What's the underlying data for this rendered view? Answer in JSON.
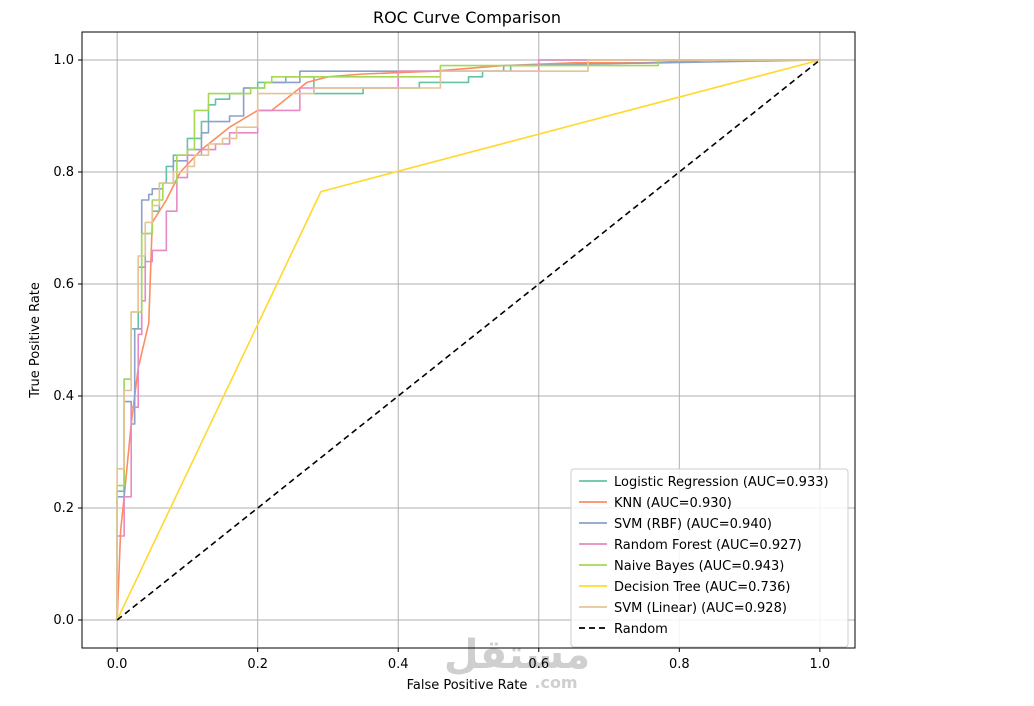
{
  "chart_data": {
    "type": "line",
    "title": "ROC Curve Comparison",
    "xlabel": "False Positive Rate",
    "ylabel": "True Positive Rate",
    "xlim": [
      -0.05,
      1.05
    ],
    "ylim": [
      -0.05,
      1.05
    ],
    "xticks": [
      "0.0",
      "0.2",
      "0.4",
      "0.6",
      "0.8",
      "1.0"
    ],
    "yticks": [
      "0.0",
      "0.2",
      "0.4",
      "0.6",
      "0.8",
      "1.0"
    ],
    "grid": true,
    "legend_position": "lower-right",
    "series": [
      {
        "name": "Logistic Regression (AUC=0.933)",
        "color": "#66c2a5",
        "x": [
          0,
          0,
          0.01,
          0.01,
          0.02,
          0.02,
          0.03,
          0.03,
          0.04,
          0.04,
          0.05,
          0.05,
          0.06,
          0.06,
          0.07,
          0.07,
          0.08,
          0.08,
          0.1,
          0.1,
          0.12,
          0.12,
          0.13,
          0.13,
          0.14,
          0.14,
          0.16,
          0.16,
          0.18,
          0.18,
          0.2,
          0.2,
          0.24,
          0.24,
          0.28,
          0.28,
          0.35,
          0.35,
          0.43,
          0.43,
          0.5,
          0.5,
          0.52,
          0.52,
          0.56,
          0.56,
          0.6,
          0.6,
          0.7,
          0.7,
          1.0
        ],
        "y": [
          0,
          0.23,
          0.23,
          0.43,
          0.43,
          0.52,
          0.52,
          0.63,
          0.63,
          0.69,
          0.69,
          0.73,
          0.73,
          0.78,
          0.78,
          0.81,
          0.81,
          0.83,
          0.83,
          0.86,
          0.86,
          0.89,
          0.89,
          0.92,
          0.92,
          0.93,
          0.93,
          0.94,
          0.94,
          0.95,
          0.95,
          0.96,
          0.96,
          0.97,
          0.97,
          0.94,
          0.94,
          0.95,
          0.95,
          0.96,
          0.96,
          0.97,
          0.97,
          0.98,
          0.98,
          0.99,
          0.99,
          1.0,
          1.0,
          1.0,
          1.0
        ]
      },
      {
        "name": "KNN (AUC=0.930)",
        "color": "#fc8d62",
        "x": [
          0,
          0.005,
          0.01,
          0.02,
          0.03,
          0.045,
          0.05,
          0.07,
          0.09,
          0.12,
          0.16,
          0.2,
          0.22,
          0.25,
          0.27,
          0.3,
          0.35,
          0.45,
          0.55,
          0.65,
          0.75,
          0.85,
          1.0
        ],
        "y": [
          0,
          0.16,
          0.22,
          0.35,
          0.45,
          0.53,
          0.71,
          0.75,
          0.8,
          0.84,
          0.88,
          0.91,
          0.91,
          0.94,
          0.96,
          0.97,
          0.975,
          0.98,
          0.99,
          0.995,
          0.995,
          1.0,
          1.0
        ]
      },
      {
        "name": "SVM (RBF) (AUC=0.940)",
        "color": "#8da0cb",
        "x": [
          0,
          0,
          0.01,
          0.01,
          0.02,
          0.02,
          0.025,
          0.025,
          0.035,
          0.035,
          0.045,
          0.045,
          0.05,
          0.05,
          0.065,
          0.065,
          0.08,
          0.08,
          0.1,
          0.1,
          0.12,
          0.12,
          0.13,
          0.13,
          0.16,
          0.16,
          0.18,
          0.18,
          0.21,
          0.21,
          0.26,
          0.26,
          0.4,
          0.4,
          0.55,
          0.55,
          1.0
        ],
        "y": [
          0,
          0.22,
          0.22,
          0.39,
          0.39,
          0.35,
          0.35,
          0.52,
          0.52,
          0.75,
          0.75,
          0.76,
          0.76,
          0.77,
          0.77,
          0.78,
          0.78,
          0.82,
          0.82,
          0.84,
          0.84,
          0.87,
          0.87,
          0.89,
          0.89,
          0.9,
          0.9,
          0.95,
          0.95,
          0.96,
          0.96,
          0.98,
          0.98,
          0.98,
          0.98,
          0.99,
          1.0
        ]
      },
      {
        "name": "Random Forest (AUC=0.927)",
        "color": "#e78ac3",
        "x": [
          0,
          0,
          0.01,
          0.01,
          0.02,
          0.02,
          0.03,
          0.03,
          0.035,
          0.035,
          0.04,
          0.04,
          0.05,
          0.05,
          0.07,
          0.07,
          0.085,
          0.085,
          0.1,
          0.1,
          0.12,
          0.12,
          0.14,
          0.14,
          0.16,
          0.16,
          0.18,
          0.18,
          0.2,
          0.2,
          0.26,
          0.26,
          0.4,
          0.4,
          0.6,
          0.6,
          0.7,
          0.7,
          1.0
        ],
        "y": [
          0,
          0.15,
          0.15,
          0.22,
          0.22,
          0.38,
          0.38,
          0.51,
          0.51,
          0.57,
          0.57,
          0.64,
          0.64,
          0.66,
          0.66,
          0.73,
          0.73,
          0.79,
          0.79,
          0.83,
          0.83,
          0.84,
          0.84,
          0.85,
          0.85,
          0.87,
          0.87,
          0.87,
          0.87,
          0.91,
          0.91,
          0.95,
          0.95,
          0.98,
          0.98,
          1.0,
          1.0,
          1.0,
          1.0
        ]
      },
      {
        "name": "Naive Bayes (AUC=0.943)",
        "color": "#a6d854",
        "x": [
          0,
          0,
          0.01,
          0.01,
          0.02,
          0.02,
          0.03,
          0.03,
          0.035,
          0.035,
          0.05,
          0.05,
          0.065,
          0.065,
          0.085,
          0.085,
          0.1,
          0.1,
          0.11,
          0.11,
          0.13,
          0.13,
          0.17,
          0.17,
          0.19,
          0.19,
          0.21,
          0.21,
          0.22,
          0.22,
          0.25,
          0.25,
          0.46,
          0.46,
          0.56,
          0.56,
          0.77,
          0.77,
          1.0
        ],
        "y": [
          0,
          0.24,
          0.24,
          0.43,
          0.43,
          0.55,
          0.55,
          0.55,
          0.55,
          0.69,
          0.69,
          0.75,
          0.75,
          0.78,
          0.78,
          0.83,
          0.83,
          0.84,
          0.84,
          0.91,
          0.91,
          0.94,
          0.94,
          0.94,
          0.94,
          0.95,
          0.95,
          0.96,
          0.96,
          0.97,
          0.97,
          0.97,
          0.97,
          0.99,
          0.99,
          0.99,
          0.99,
          1.0,
          1.0
        ]
      },
      {
        "name": "Decision Tree (AUC=0.736)",
        "color": "#ffd92f",
        "x": [
          0,
          0.29,
          1.0
        ],
        "y": [
          0,
          0.765,
          1.0
        ]
      },
      {
        "name": "SVM (Linear) (AUC=0.928)",
        "color": "#e5c494",
        "x": [
          0,
          0,
          0.01,
          0.01,
          0.02,
          0.02,
          0.03,
          0.03,
          0.04,
          0.04,
          0.05,
          0.05,
          0.06,
          0.06,
          0.08,
          0.08,
          0.1,
          0.1,
          0.11,
          0.11,
          0.13,
          0.13,
          0.15,
          0.15,
          0.17,
          0.17,
          0.2,
          0.2,
          0.28,
          0.28,
          0.46,
          0.46,
          0.67,
          0.67,
          1.0
        ],
        "y": [
          0,
          0.27,
          0.27,
          0.41,
          0.41,
          0.55,
          0.55,
          0.65,
          0.65,
          0.71,
          0.71,
          0.74,
          0.74,
          0.78,
          0.78,
          0.8,
          0.8,
          0.81,
          0.81,
          0.83,
          0.83,
          0.85,
          0.85,
          0.86,
          0.86,
          0.88,
          0.88,
          0.94,
          0.94,
          0.95,
          0.95,
          0.98,
          0.98,
          1.0,
          1.0
        ]
      },
      {
        "name": "Random",
        "color": "#000000",
        "dashed": true,
        "x": [
          0,
          1
        ],
        "y": [
          0,
          1
        ]
      }
    ]
  },
  "watermark": {
    "main": "مستقل",
    "sub": ".com"
  }
}
